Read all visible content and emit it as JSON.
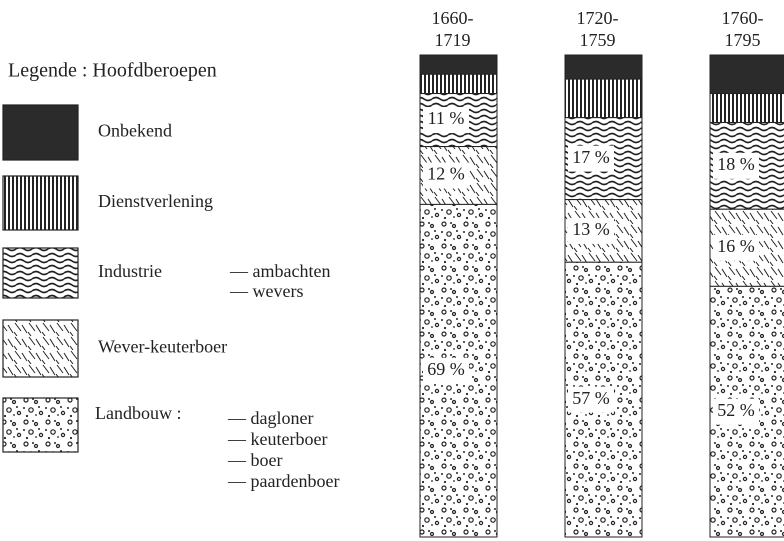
{
  "chart_data": {
    "type": "stacked-bar",
    "legend_title": "Legende : Hoofdberoepen",
    "categories": [
      "1660-\n1719",
      "1720-\n1759",
      "1760-\n1795"
    ],
    "ylim": [
      0,
      100
    ],
    "series": [
      {
        "name": "Onbekend",
        "color": "#2b2b2b",
        "pattern": "solid",
        "values": [
          4,
          5,
          8
        ]
      },
      {
        "name": "Dienstverlening",
        "color": "#222222",
        "pattern": "vertical",
        "values": [
          4,
          8,
          6
        ]
      },
      {
        "name": "Industrie",
        "color": "#222222",
        "pattern": "wave",
        "subtypes": [
          "— ambachten",
          "— wevers"
        ],
        "values": [
          11,
          17,
          18
        ],
        "value_labels": [
          "11 %",
          "17 %",
          "18 %"
        ]
      },
      {
        "name": "Wever-keuterboer",
        "color": "#222222",
        "pattern": "hatch",
        "values": [
          12,
          13,
          16
        ],
        "value_labels": [
          "12 %",
          "13 %",
          "16 %"
        ]
      },
      {
        "name": "Landbouw :",
        "color": "#222222",
        "pattern": "speckle",
        "subtypes": [
          "— dagloner",
          "— keuterboer",
          "— boer",
          "— paardenboer"
        ],
        "values": [
          69,
          57,
          52
        ],
        "value_labels": [
          "69 %",
          "57 %",
          "52 %"
        ]
      }
    ]
  }
}
